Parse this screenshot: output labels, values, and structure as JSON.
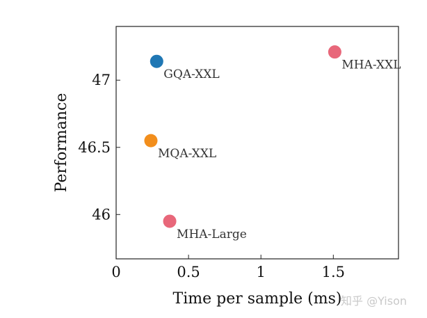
{
  "chart_data": {
    "type": "scatter",
    "xlabel": "Time per sample (ms)",
    "ylabel": "Performance",
    "xlim": [
      0,
      1.95
    ],
    "ylim": [
      45.67,
      47.4
    ],
    "xticks": [
      0,
      0.5,
      1,
      1.5
    ],
    "xtick_labels": [
      "0",
      "0.5",
      "1",
      "1.5"
    ],
    "yticks": [
      46,
      46.5,
      47
    ],
    "ytick_labels": [
      "46",
      "46.5",
      "47"
    ],
    "grid": false,
    "points": [
      {
        "label": "GQA-XXL",
        "x": 0.28,
        "y": 47.14,
        "color": "#1f77b4"
      },
      {
        "label": "MQA-XXL",
        "x": 0.24,
        "y": 46.55,
        "color": "#f28e1c"
      },
      {
        "label": "MHA-XXL",
        "x": 1.51,
        "y": 47.21,
        "color": "#e8677a"
      },
      {
        "label": "MHA-Large",
        "x": 0.37,
        "y": 45.95,
        "color": "#e8677a"
      }
    ]
  },
  "watermark": "知乎 @Yison"
}
